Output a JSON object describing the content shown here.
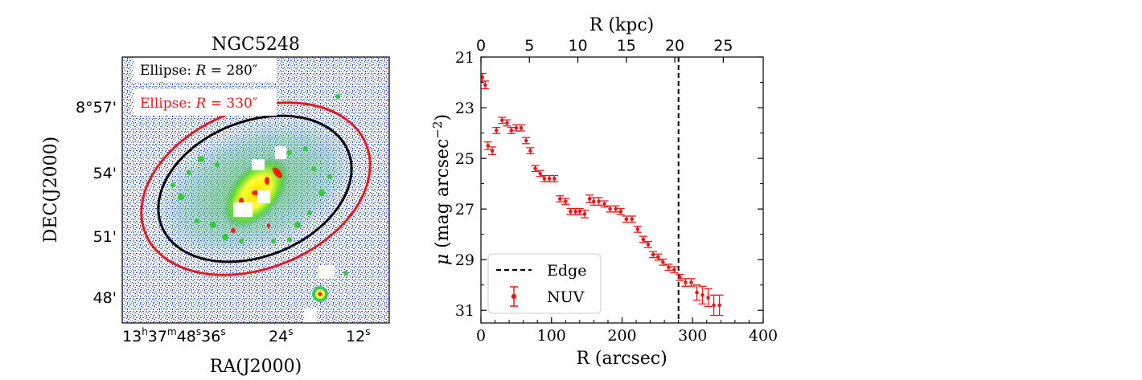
{
  "left_panel": {
    "title": "NGC5248",
    "xlabel": "RA(J2000)",
    "ylabel": "DEC(J2000)",
    "yticks": [
      "8°57'",
      "54'",
      "51'",
      "48'"
    ],
    "xticks": [
      {
        "parts": [
          "13",
          "h",
          "37",
          "m",
          "48",
          "s",
          "36",
          "s"
        ]
      },
      {
        "parts": [
          "24",
          "s"
        ]
      },
      {
        "parts": [
          "12",
          "s"
        ]
      }
    ],
    "legend": {
      "black_prefix": "Ellipse: ",
      "black_var": "R",
      "black_eq": " = 280",
      "black_unit": "″",
      "red_prefix": "Ellipse: ",
      "red_var": "R",
      "red_eq": " = 330",
      "red_unit": "″"
    },
    "colors": {
      "black_ellipse": "#000000",
      "red_ellipse": "#e41a1c",
      "noise": "#1f3f9f",
      "glow": "#ffff00",
      "core": "#ff0000",
      "arm": "#33cc33"
    }
  },
  "chart_data": {
    "type": "scatter",
    "title": "",
    "xlabel": "R (arcsec)",
    "top_xlabel": "R (kpc)",
    "ylabel_symbol": "μ",
    "ylabel_text": " (mag arcsec",
    "ylabel_sup": "−2",
    "ylabel_close": ")",
    "xlim": [
      0,
      400
    ],
    "ylim": [
      31.5,
      21
    ],
    "xticks": [
      0,
      100,
      200,
      300,
      400
    ],
    "yticks": [
      21,
      23,
      25,
      27,
      29,
      31
    ],
    "top_xticks": [
      0,
      5,
      10,
      15,
      20,
      25
    ],
    "kpc_per_arcsec": 0.0728,
    "edge_x": 280,
    "legend": {
      "edge_label": "Edge",
      "series_label": "NUV",
      "position": "lower-left"
    },
    "series": [
      {
        "name": "NUV",
        "color": "#e41a1c",
        "x": [
          2,
          6,
          10,
          16,
          22,
          30,
          37,
          43,
          50,
          57,
          64,
          70,
          77,
          84,
          90,
          97,
          104,
          112,
          120,
          127,
          134,
          140,
          147,
          154,
          160,
          167,
          175,
          183,
          191,
          198,
          206,
          214,
          222,
          230,
          237,
          244,
          251,
          258,
          266,
          274,
          282,
          290,
          298,
          306,
          314,
          322,
          330,
          338
        ],
        "y": [
          21.8,
          22.1,
          24.5,
          24.7,
          23.9,
          23.5,
          23.6,
          23.9,
          23.8,
          23.8,
          24.3,
          24.7,
          25.4,
          25.6,
          25.8,
          25.8,
          25.8,
          26.6,
          26.7,
          27.1,
          27.1,
          27.1,
          27.2,
          26.6,
          26.7,
          26.7,
          26.8,
          27.0,
          27.0,
          27.1,
          27.4,
          27.4,
          27.8,
          28.2,
          28.4,
          28.8,
          28.9,
          29.1,
          29.3,
          29.4,
          29.7,
          29.9,
          29.9,
          30.3,
          30.4,
          30.5,
          30.8,
          30.8
        ],
        "yerr": [
          0.15,
          0.15,
          0.15,
          0.15,
          0.12,
          0.12,
          0.12,
          0.12,
          0.12,
          0.12,
          0.12,
          0.12,
          0.12,
          0.12,
          0.12,
          0.12,
          0.12,
          0.12,
          0.12,
          0.12,
          0.12,
          0.12,
          0.15,
          0.15,
          0.15,
          0.15,
          0.12,
          0.12,
          0.12,
          0.12,
          0.12,
          0.12,
          0.12,
          0.12,
          0.12,
          0.12,
          0.12,
          0.12,
          0.12,
          0.12,
          0.12,
          0.15,
          0.15,
          0.3,
          0.35,
          0.35,
          0.4,
          0.4
        ]
      }
    ]
  }
}
